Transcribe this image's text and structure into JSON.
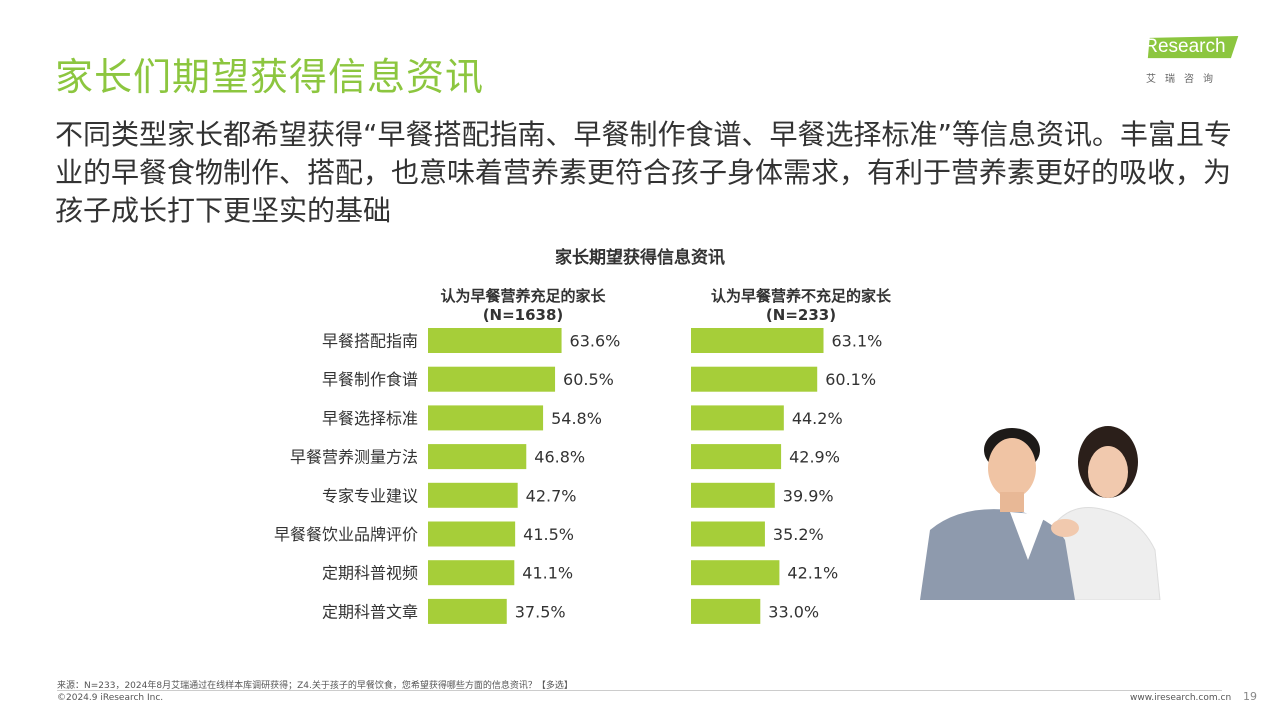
{
  "page": {
    "title": "家长们期望获得信息资讯",
    "intro": "不同类型家长都希望获得“早餐搭配指南、早餐制作食谱、早餐选择标准”等信息资讯。丰富且专业的早餐食物制作、搭配，也意味着营养素更符合孩子身体需求，有利于营养素更好的吸收，为孩子成长打下更坚实的基础",
    "accent_color": "#8cc63f"
  },
  "logo": {
    "text": "iResearch",
    "subtitle": "艾瑞咨询"
  },
  "chart_data": {
    "type": "bar",
    "orientation": "horizontal",
    "title": "家长期望获得信息资讯",
    "categories": [
      "早餐搭配指南",
      "早餐制作食谱",
      "早餐选择标准",
      "早餐营养测量方法",
      "专家专业建议",
      "早餐餐饮业品牌评价",
      "定期科普视频",
      "定期科普文章"
    ],
    "series": [
      {
        "name": "认为早餐营养充足的家长",
        "sample": "(N=1638)",
        "values": [
          63.6,
          60.5,
          54.8,
          46.8,
          42.7,
          41.5,
          41.1,
          37.5
        ],
        "labels": [
          "63.6%",
          "60.5%",
          "54.8%",
          "46.8%",
          "42.7%",
          "41.5%",
          "41.1%",
          "37.5%"
        ]
      },
      {
        "name": "认为早餐营养不充足的家长",
        "sample": "(N=233)",
        "values": [
          63.1,
          60.1,
          44.2,
          42.9,
          39.9,
          35.2,
          42.1,
          33.0
        ],
        "labels": [
          "63.1%",
          "60.1%",
          "44.2%",
          "42.9%",
          "39.9%",
          "35.2%",
          "42.1%",
          "33.0%"
        ]
      }
    ],
    "bar_color": "#a6ce39",
    "grid": false
  },
  "footer": {
    "note": "来源：N=233，2024年8月艾瑞通过在线样本库调研获得；Z4.关于孩子的早餐饮食，您希望获得哪些方面的信息资讯？【多选】",
    "copyright": "©2024.9 iResearch Inc.",
    "url": "www.iresearch.com.cn",
    "page_number": "19"
  }
}
